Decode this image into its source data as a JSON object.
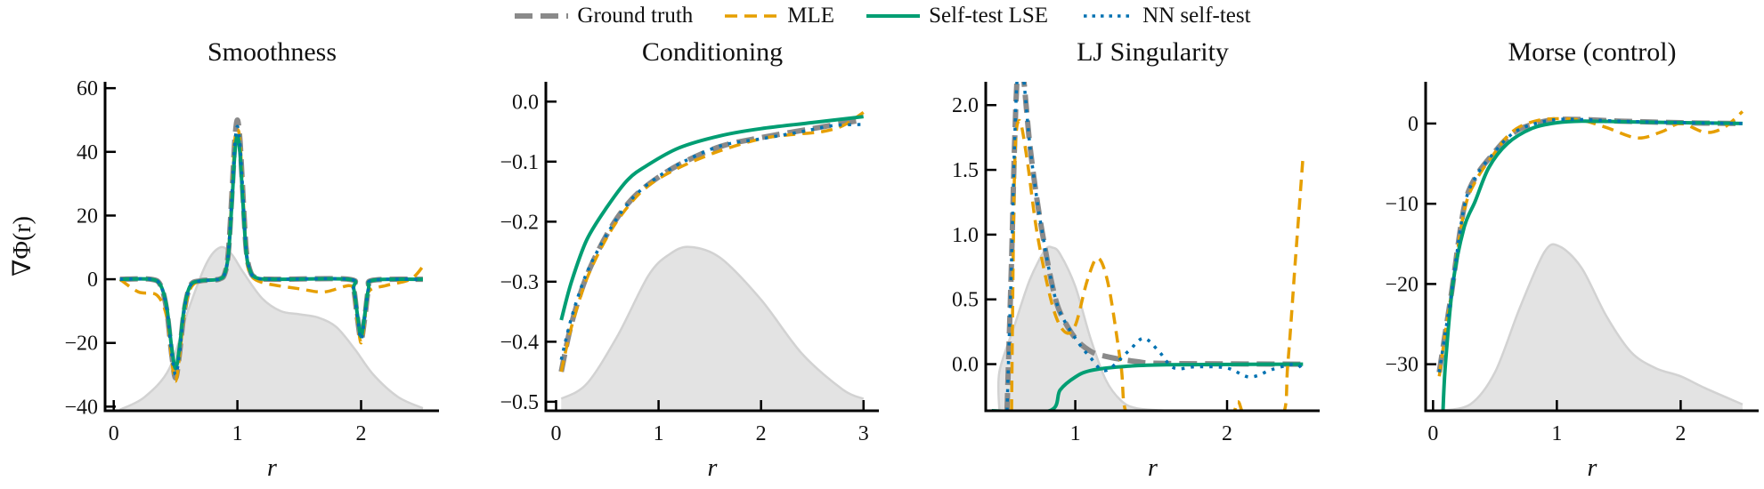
{
  "legend": [
    {
      "name": "Ground truth",
      "color": "#8a8a8a",
      "style": "dashed-thick"
    },
    {
      "name": "MLE",
      "color": "#E69F00",
      "style": "dashed"
    },
    {
      "name": "Self-test LSE",
      "color": "#009E73",
      "style": "solid"
    },
    {
      "name": "NN self-test",
      "color": "#0072B2",
      "style": "dotted"
    }
  ],
  "density_color": "#e3e3e3",
  "chart_data": [
    {
      "type": "line",
      "title": "Smoothness",
      "xlabel": "r",
      "ylabel": "∇Φ(r)",
      "xlim": [
        -0.07,
        2.63
      ],
      "ylim": [
        -41.3,
        62
      ],
      "xticks": [
        0,
        1,
        2
      ],
      "yticks": [
        -40,
        -20,
        0,
        20,
        40,
        60
      ],
      "ytick_labels": [
        "−40",
        "−20",
        "0",
        "20",
        "40",
        "60"
      ],
      "density": {
        "x": [
          0.05,
          0.25,
          0.45,
          0.6,
          0.75,
          0.86,
          0.95,
          1.05,
          1.2,
          1.35,
          1.5,
          1.65,
          1.8,
          1.95,
          2.1,
          2.3,
          2.5
        ],
        "y": [
          -41,
          -37,
          -28,
          -10,
          5,
          10,
          8,
          2,
          -6,
          -10,
          -11,
          -12,
          -15,
          -22,
          -30,
          -37,
          -40.5
        ]
      },
      "series": [
        {
          "name": "Ground truth",
          "x": [
            0.05,
            0.3,
            0.38,
            0.43,
            0.47,
            0.5,
            0.53,
            0.57,
            0.62,
            0.7,
            0.85,
            0.9,
            0.93,
            0.96,
            0.98,
            1.0,
            1.02,
            1.04,
            1.07,
            1.1,
            1.15,
            1.3,
            1.9,
            1.94,
            1.97,
            2.0,
            2.03,
            2.06,
            2.1,
            2.5
          ],
          "y": [
            0,
            0,
            -2,
            -10,
            -24,
            -31,
            -24,
            -10,
            -2,
            -0.5,
            0,
            2,
            10,
            30,
            44,
            50,
            44,
            30,
            10,
            3,
            0.5,
            0,
            0,
            -3,
            -12,
            -19,
            -12,
            -3,
            -0.3,
            0
          ]
        },
        {
          "name": "MLE",
          "x": [
            0.05,
            0.2,
            0.35,
            0.43,
            0.47,
            0.5,
            0.53,
            0.57,
            0.62,
            0.7,
            0.85,
            0.9,
            0.93,
            0.96,
            0.98,
            1.0,
            1.02,
            1.04,
            1.07,
            1.1,
            1.2,
            1.5,
            1.7,
            1.9,
            1.94,
            1.97,
            2.0,
            2.03,
            2.06,
            2.2,
            2.4,
            2.5
          ],
          "y": [
            0,
            -4,
            -5,
            -12,
            -26,
            -32,
            -25,
            -11,
            -3,
            -0.5,
            0,
            2,
            10,
            30,
            44,
            47,
            44,
            30,
            10,
            2,
            -1,
            -3,
            -4,
            -2,
            -4,
            -13,
            -20,
            -13,
            -4,
            -2,
            0,
            4
          ]
        },
        {
          "name": "Self-test LSE",
          "x": [
            0.05,
            0.3,
            0.38,
            0.43,
            0.47,
            0.5,
            0.53,
            0.57,
            0.62,
            0.7,
            0.85,
            0.9,
            0.93,
            0.96,
            0.98,
            1.0,
            1.02,
            1.04,
            1.07,
            1.1,
            1.15,
            1.3,
            1.9,
            1.94,
            1.97,
            2.0,
            2.03,
            2.06,
            2.1,
            2.5
          ],
          "y": [
            0,
            0,
            -2,
            -9,
            -22,
            -28,
            -22,
            -9,
            -2,
            -0.5,
            0,
            2,
            9,
            27,
            40,
            45,
            40,
            27,
            9,
            3,
            0.5,
            0,
            0,
            -3,
            -11,
            -18,
            -11,
            -3,
            -0.3,
            0
          ]
        },
        {
          "name": "NN self-test",
          "x": [
            0.05,
            0.3,
            0.38,
            0.43,
            0.47,
            0.5,
            0.53,
            0.57,
            0.62,
            0.7,
            0.85,
            0.9,
            0.93,
            0.96,
            0.98,
            1.0,
            1.02,
            1.04,
            1.07,
            1.1,
            1.15,
            1.3,
            1.9,
            1.94,
            1.97,
            2.0,
            2.03,
            2.06,
            2.1,
            2.5
          ],
          "y": [
            0,
            0,
            -2,
            -10,
            -24,
            -30,
            -24,
            -10,
            -2,
            -0.5,
            0,
            2,
            10,
            30,
            43,
            48,
            43,
            30,
            10,
            3,
            0.5,
            0,
            0,
            -3,
            -12,
            -19,
            -12,
            -3,
            -0.3,
            0
          ]
        }
      ]
    },
    {
      "type": "line",
      "title": "Conditioning",
      "xlabel": "r",
      "xlim": [
        -0.1,
        3.15
      ],
      "ylim": [
        -0.515,
        0.033
      ],
      "xticks": [
        0,
        1,
        2,
        3
      ],
      "yticks": [
        -0.5,
        -0.4,
        -0.3,
        -0.2,
        -0.1,
        0.0
      ],
      "ytick_labels": [
        "−0.5",
        "−0.4",
        "−0.3",
        "−0.2",
        "−0.1",
        "0.0"
      ],
      "density": {
        "x": [
          0.05,
          0.3,
          0.6,
          0.9,
          1.1,
          1.3,
          1.6,
          2.0,
          2.4,
          2.8,
          3.0
        ],
        "y": [
          -0.495,
          -0.47,
          -0.39,
          -0.29,
          -0.255,
          -0.242,
          -0.26,
          -0.33,
          -0.42,
          -0.48,
          -0.495
        ]
      },
      "series": [
        {
          "name": "Ground truth",
          "x": [
            0.05,
            0.15,
            0.3,
            0.5,
            0.7,
            0.9,
            1.2,
            1.6,
            2.0,
            2.5,
            3.0
          ],
          "y": [
            -0.45,
            -0.37,
            -0.29,
            -0.22,
            -0.17,
            -0.138,
            -0.105,
            -0.075,
            -0.06,
            -0.045,
            -0.03
          ]
        },
        {
          "name": "MLE",
          "x": [
            0.05,
            0.15,
            0.3,
            0.5,
            0.7,
            0.9,
            1.2,
            1.6,
            2.0,
            2.3,
            2.6,
            2.8,
            3.0
          ],
          "y": [
            -0.45,
            -0.375,
            -0.295,
            -0.225,
            -0.175,
            -0.14,
            -0.11,
            -0.082,
            -0.062,
            -0.055,
            -0.05,
            -0.04,
            -0.018
          ]
        },
        {
          "name": "Self-test LSE",
          "x": [
            0.05,
            0.15,
            0.3,
            0.5,
            0.7,
            0.9,
            1.2,
            1.6,
            2.0,
            2.5,
            3.0
          ],
          "y": [
            -0.364,
            -0.3,
            -0.23,
            -0.175,
            -0.13,
            -0.105,
            -0.077,
            -0.057,
            -0.045,
            -0.035,
            -0.025
          ]
        },
        {
          "name": "NN self-test",
          "x": [
            0.05,
            0.15,
            0.3,
            0.5,
            0.7,
            0.9,
            1.2,
            1.6,
            2.0,
            2.4,
            2.7,
            3.0
          ],
          "y": [
            -0.43,
            -0.36,
            -0.285,
            -0.22,
            -0.17,
            -0.137,
            -0.104,
            -0.074,
            -0.062,
            -0.05,
            -0.04,
            -0.038
          ]
        }
      ]
    },
    {
      "type": "line",
      "title": "LJ Singularity",
      "xlabel": "r",
      "xlim": [
        0.41,
        2.61
      ],
      "ylim": [
        -0.36,
        2.18
      ],
      "xticks": [
        1,
        2
      ],
      "yticks": [
        0.0,
        0.5,
        1.0,
        1.5,
        2.0
      ],
      "ytick_labels": [
        "0.0",
        "0.5",
        "1.0",
        "1.5",
        "2.0"
      ],
      "density": {
        "x": [
          0.5,
          0.5,
          0.6,
          0.7,
          0.8,
          0.85,
          0.9,
          1.0,
          1.1,
          1.2,
          1.3,
          1.4,
          1.6
        ],
        "y": [
          -0.36,
          -0.06,
          0.3,
          0.65,
          0.88,
          0.9,
          0.85,
          0.6,
          0.2,
          -0.12,
          -0.28,
          -0.34,
          -0.36
        ]
      },
      "series": [
        {
          "name": "Ground truth",
          "x": [
            0.55,
            0.58,
            0.6,
            0.62,
            0.65,
            0.7,
            0.75,
            0.8,
            0.85,
            0.9,
            1.0,
            1.1,
            1.2,
            1.4,
            1.6,
            2.5
          ],
          "y": [
            -0.36,
            0.8,
            1.7,
            2.25,
            2.3,
            1.7,
            1.25,
            0.9,
            0.6,
            0.4,
            0.2,
            0.1,
            0.06,
            0.02,
            0.005,
            0
          ]
        },
        {
          "name": "MLE",
          "x": [
            0.58,
            0.6,
            0.63,
            0.68,
            0.75,
            0.85,
            0.93,
            1.0,
            1.08,
            1.15,
            1.22,
            1.3,
            1.35,
            1.6,
            2.0,
            2.07,
            2.13,
            2.36,
            2.4,
            2.45,
            2.5
          ],
          "y": [
            -0.36,
            1.5,
            1.88,
            1.6,
            1.0,
            0.45,
            0.25,
            0.3,
            0.65,
            0.82,
            0.6,
            0.0,
            -0.4,
            -0.4,
            -0.4,
            -0.29,
            -0.4,
            -0.4,
            0.0,
            0.8,
            1.6
          ]
        },
        {
          "name": "Self-test LSE",
          "x": [
            0.45,
            0.83,
            0.9,
            1.0,
            1.1,
            1.3,
            1.6,
            2.5
          ],
          "y": [
            -0.36,
            -0.36,
            -0.2,
            -0.1,
            -0.05,
            -0.02,
            -0.005,
            0
          ]
        },
        {
          "name": "NN self-test",
          "x": [
            0.55,
            0.58,
            0.6,
            0.62,
            0.65,
            0.7,
            0.75,
            0.8,
            0.85,
            0.9,
            1.0,
            1.1,
            1.2,
            1.35,
            1.45,
            1.55,
            1.65,
            1.8,
            2.0,
            2.15,
            2.3,
            2.45,
            2.5
          ],
          "y": [
            -0.36,
            0.8,
            1.7,
            2.25,
            2.3,
            1.7,
            1.25,
            0.9,
            0.6,
            0.4,
            0.2,
            0.05,
            -0.05,
            0.1,
            0.2,
            0.1,
            -0.03,
            -0.02,
            -0.03,
            -0.1,
            -0.04,
            0,
            -0.05
          ]
        }
      ]
    },
    {
      "type": "line",
      "title": "Morse (control)",
      "xlabel": "r",
      "xlim": [
        -0.06,
        2.63
      ],
      "ylim": [
        -35.8,
        5.2
      ],
      "xticks": [
        0,
        1,
        2
      ],
      "yticks": [
        -30,
        -20,
        -10,
        0
      ],
      "ytick_labels": [
        "−30",
        "−20",
        "−10",
        "0"
      ],
      "density": {
        "x": [
          0.05,
          0.3,
          0.5,
          0.7,
          0.9,
          1.02,
          1.2,
          1.4,
          1.6,
          1.8,
          2.0,
          2.2,
          2.5
        ],
        "y": [
          -35.8,
          -35,
          -31,
          -23,
          -16,
          -15.3,
          -18,
          -24,
          -28.5,
          -30.5,
          -31.5,
          -33,
          -35
        ]
      },
      "series": [
        {
          "name": "Ground truth",
          "x": [
            0.05,
            0.1,
            0.15,
            0.25,
            0.35,
            0.5,
            0.6,
            0.7,
            0.85,
            1.0,
            1.2,
            1.5,
            2.0,
            2.5
          ],
          "y": [
            -31,
            -26,
            -21,
            -10.5,
            -6.5,
            -3.5,
            -1.8,
            -0.7,
            0.1,
            0.5,
            0.5,
            0.3,
            0.1,
            0
          ]
        },
        {
          "name": "MLE",
          "x": [
            0.05,
            0.1,
            0.15,
            0.25,
            0.35,
            0.5,
            0.6,
            0.7,
            0.85,
            1.0,
            1.2,
            1.4,
            1.65,
            1.85,
            2.0,
            2.2,
            2.35,
            2.5
          ],
          "y": [
            -31.5,
            -26,
            -21,
            -11,
            -7,
            -3.6,
            -1.6,
            -0.4,
            0.4,
            0.6,
            0.4,
            -0.5,
            -1.8,
            -1.0,
            0,
            -1.1,
            -0.5,
            1.5
          ]
        },
        {
          "name": "Self-test LSE",
          "x": [
            0.08,
            0.1,
            0.16,
            0.25,
            0.34,
            0.45,
            0.6,
            0.8,
            1.0,
            1.2,
            1.6,
            2.5
          ],
          "y": [
            -35.8,
            -30,
            -20,
            -13,
            -9.7,
            -5.5,
            -2.5,
            -0.6,
            0.1,
            0.3,
            0.2,
            0
          ]
        },
        {
          "name": "NN self-test",
          "x": [
            0.05,
            0.1,
            0.15,
            0.25,
            0.35,
            0.5,
            0.6,
            0.7,
            0.85,
            1.0,
            1.2,
            1.5,
            2.0,
            2.5
          ],
          "y": [
            -31,
            -26,
            -21,
            -10.5,
            -6.5,
            -3.5,
            -1.8,
            -0.7,
            0.1,
            0.5,
            0.5,
            0.3,
            0.1,
            0
          ]
        }
      ]
    }
  ]
}
